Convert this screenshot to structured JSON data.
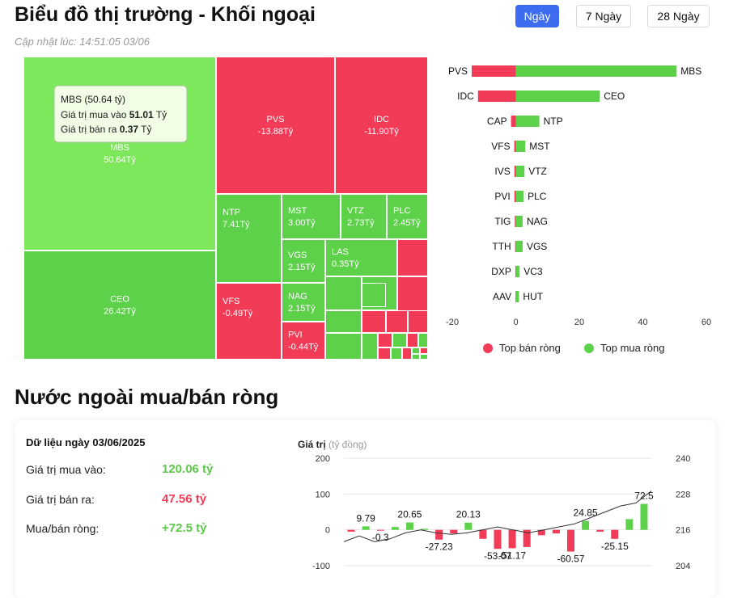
{
  "header": {
    "title": "Biểu đồ thị trường - Khối ngoại",
    "updated": "Cập nhật lúc: 14:51:05 03/06",
    "periods": [
      "Ngày",
      "7 Ngày",
      "28 Ngày"
    ],
    "active_period": "Ngày"
  },
  "colors": {
    "up": "#7ee85c",
    "up_dark": "#5ed14a",
    "down": "#f23b57",
    "accent": "#3d6cf0"
  },
  "treemap": {
    "tooltip": {
      "title": "MBS (50.64 tỷ)",
      "buy_label": "Giá trị mua vào",
      "buy_value": "51.01",
      "sell_label": "Giá trị bán ra",
      "sell_value": "0.37",
      "unit": "Tỷ"
    },
    "tiles": [
      {
        "code": "MBS",
        "label": "50.64Tỷ",
        "dir": "up"
      },
      {
        "code": "CEO",
        "label": "26.42Tỷ",
        "dir": "up"
      },
      {
        "code": "PVS",
        "label": "-13.88Tỷ",
        "dir": "down"
      },
      {
        "code": "IDC",
        "label": "-11.90Tỷ",
        "dir": "down"
      },
      {
        "code": "NTP",
        "label": "7.41Tỷ",
        "dir": "up"
      },
      {
        "code": "MST",
        "label": "3.00Tỷ",
        "dir": "up"
      },
      {
        "code": "VTZ",
        "label": "2.73Tỷ",
        "dir": "up"
      },
      {
        "code": "PLC",
        "label": "2.45Tỷ",
        "dir": "up"
      },
      {
        "code": "VGS",
        "label": "2.15Tỷ",
        "dir": "up"
      },
      {
        "code": "LAS",
        "label": "0.35Tỷ",
        "dir": "up"
      },
      {
        "code": "NAG",
        "label": "2.15Tỷ",
        "dir": "up"
      },
      {
        "code": "VFS",
        "label": "-0.49Tỷ",
        "dir": "down"
      },
      {
        "code": "PVI",
        "label": "-0.44Tỷ",
        "dir": "down"
      }
    ]
  },
  "chart_data": [
    {
      "type": "bar",
      "title": "Top bán ròng / Top mua ròng",
      "xlim": [
        -20,
        60
      ],
      "xticks": [
        -20,
        0,
        20,
        40,
        60
      ],
      "legend": [
        {
          "name": "Top bán ròng",
          "color": "#f23b57"
        },
        {
          "name": "Top mua ròng",
          "color": "#5ed14a"
        }
      ],
      "legend_position": "bottom",
      "rows": [
        {
          "sell": "PVS",
          "sell_value": -13.88,
          "buy": "MBS",
          "buy_value": 50.64
        },
        {
          "sell": "IDC",
          "sell_value": -11.9,
          "buy": "CEO",
          "buy_value": 26.42
        },
        {
          "sell": "CAP",
          "sell_value": -1.5,
          "buy": "NTP",
          "buy_value": 7.41
        },
        {
          "sell": "VFS",
          "sell_value": -0.49,
          "buy": "MST",
          "buy_value": 3.0
        },
        {
          "sell": "IVS",
          "sell_value": -0.45,
          "buy": "VTZ",
          "buy_value": 2.73
        },
        {
          "sell": "PVI",
          "sell_value": -0.44,
          "buy": "PLC",
          "buy_value": 2.45
        },
        {
          "sell": "TIG",
          "sell_value": -0.3,
          "buy": "NAG",
          "buy_value": 2.15
        },
        {
          "sell": "TTH",
          "sell_value": -0.2,
          "buy": "VGS",
          "buy_value": 2.15
        },
        {
          "sell": "DXP",
          "sell_value": -0.15,
          "buy": "VC3",
          "buy_value": 1.2
        },
        {
          "sell": "AAV",
          "sell_value": -0.1,
          "buy": "HUT",
          "buy_value": 1.0
        }
      ]
    },
    {
      "type": "bar",
      "title": "Giá trị",
      "ylabel": "Giá trị",
      "ylabel_unit": "(tỷ đồng)",
      "ylim": [
        -100,
        200
      ],
      "yticks": [
        -100,
        0,
        100,
        200
      ],
      "y2lim": [
        204,
        240
      ],
      "y2ticks": [
        204,
        216,
        228,
        240
      ],
      "values": [
        -5,
        9.79,
        -0.3,
        8,
        20.65,
        3,
        -27.23,
        -10,
        20.13,
        -25,
        -53.07,
        -51.17,
        -48,
        -15,
        -10,
        -60.57,
        24.85,
        -5,
        -25.15,
        30,
        72.5
      ],
      "value_labels": {
        "1": "9.79",
        "2": "-0.3",
        "4": "20.65",
        "6": "-27.23",
        "8": "20.13",
        "10": "-53.07",
        "11": "-51.17",
        "15": "-60.57",
        "16": "24.85",
        "18": "-25.15",
        "20": "72.5"
      },
      "line": [
        212,
        214,
        212,
        213,
        215,
        216,
        215,
        214.5,
        215,
        216,
        217,
        216,
        215,
        216,
        217,
        218,
        220,
        222,
        224,
        225,
        229
      ]
    }
  ],
  "section2": {
    "title": "Nước ngoài mua/bán ròng",
    "summary_title": "Dữ liệu ngày 03/06/2025",
    "rows": [
      {
        "label": "Giá trị mua vào:",
        "value": "120.06 tỷ",
        "color": "#5ec84a"
      },
      {
        "label": "Giá trị bán ra:",
        "value": "47.56 tỷ",
        "color": "#f23b57"
      },
      {
        "label": "Mua/bán ròng:",
        "value": "+72.5 tỷ",
        "color": "#5ec84a"
      }
    ]
  }
}
